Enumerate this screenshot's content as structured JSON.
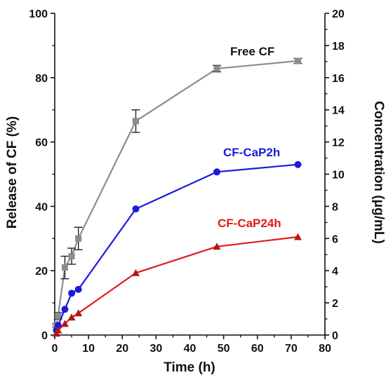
{
  "chart_data": {
    "type": "line",
    "xlabel": "Time (h)",
    "ylabel": "Release of CF (%)",
    "y2label": "Concentration (μg/mL)",
    "xlim": [
      0,
      80
    ],
    "ylim": [
      0,
      100
    ],
    "y2lim": [
      0,
      20
    ],
    "xticks": [
      "0",
      "10",
      "20",
      "30",
      "40",
      "50",
      "60",
      "70",
      "80"
    ],
    "yticks": [
      "0",
      "20",
      "40",
      "60",
      "80",
      "100"
    ],
    "y2ticks": [
      "0",
      "2",
      "4",
      "6",
      "8",
      "10",
      "12",
      "14",
      "16",
      "18",
      "20"
    ],
    "grid": false,
    "series": [
      {
        "name": "Free CF",
        "color": "#8c8c8c",
        "marker": "square",
        "x": [
          0.5,
          1,
          3,
          5,
          7,
          24,
          48,
          72
        ],
        "y": [
          3,
          6,
          21,
          24.5,
          30,
          66.5,
          82.8,
          85.2
        ],
        "err": [
          0.5,
          1,
          3.5,
          2.5,
          3.5,
          3.5,
          1,
          0.8
        ]
      },
      {
        "name": "CF-CaP2h",
        "color": "#1a1adc",
        "marker": "circle",
        "x": [
          0.5,
          1,
          3,
          5,
          7,
          24,
          48,
          72
        ],
        "y": [
          1.5,
          3,
          8,
          13,
          14.2,
          39.2,
          50.7,
          53
        ],
        "err": [
          0,
          0,
          0,
          0,
          0,
          0,
          0,
          0
        ]
      },
      {
        "name": "CF-CaP24h",
        "color": "#e01a1a",
        "marker": "triangle",
        "x": [
          0.5,
          1,
          3,
          5,
          7,
          24,
          48,
          72
        ],
        "y": [
          0.5,
          1.5,
          3.5,
          5.5,
          6.8,
          19.3,
          27.5,
          30.5
        ],
        "err": [
          0,
          0,
          0,
          0,
          0,
          0,
          0,
          0
        ]
      }
    ]
  }
}
